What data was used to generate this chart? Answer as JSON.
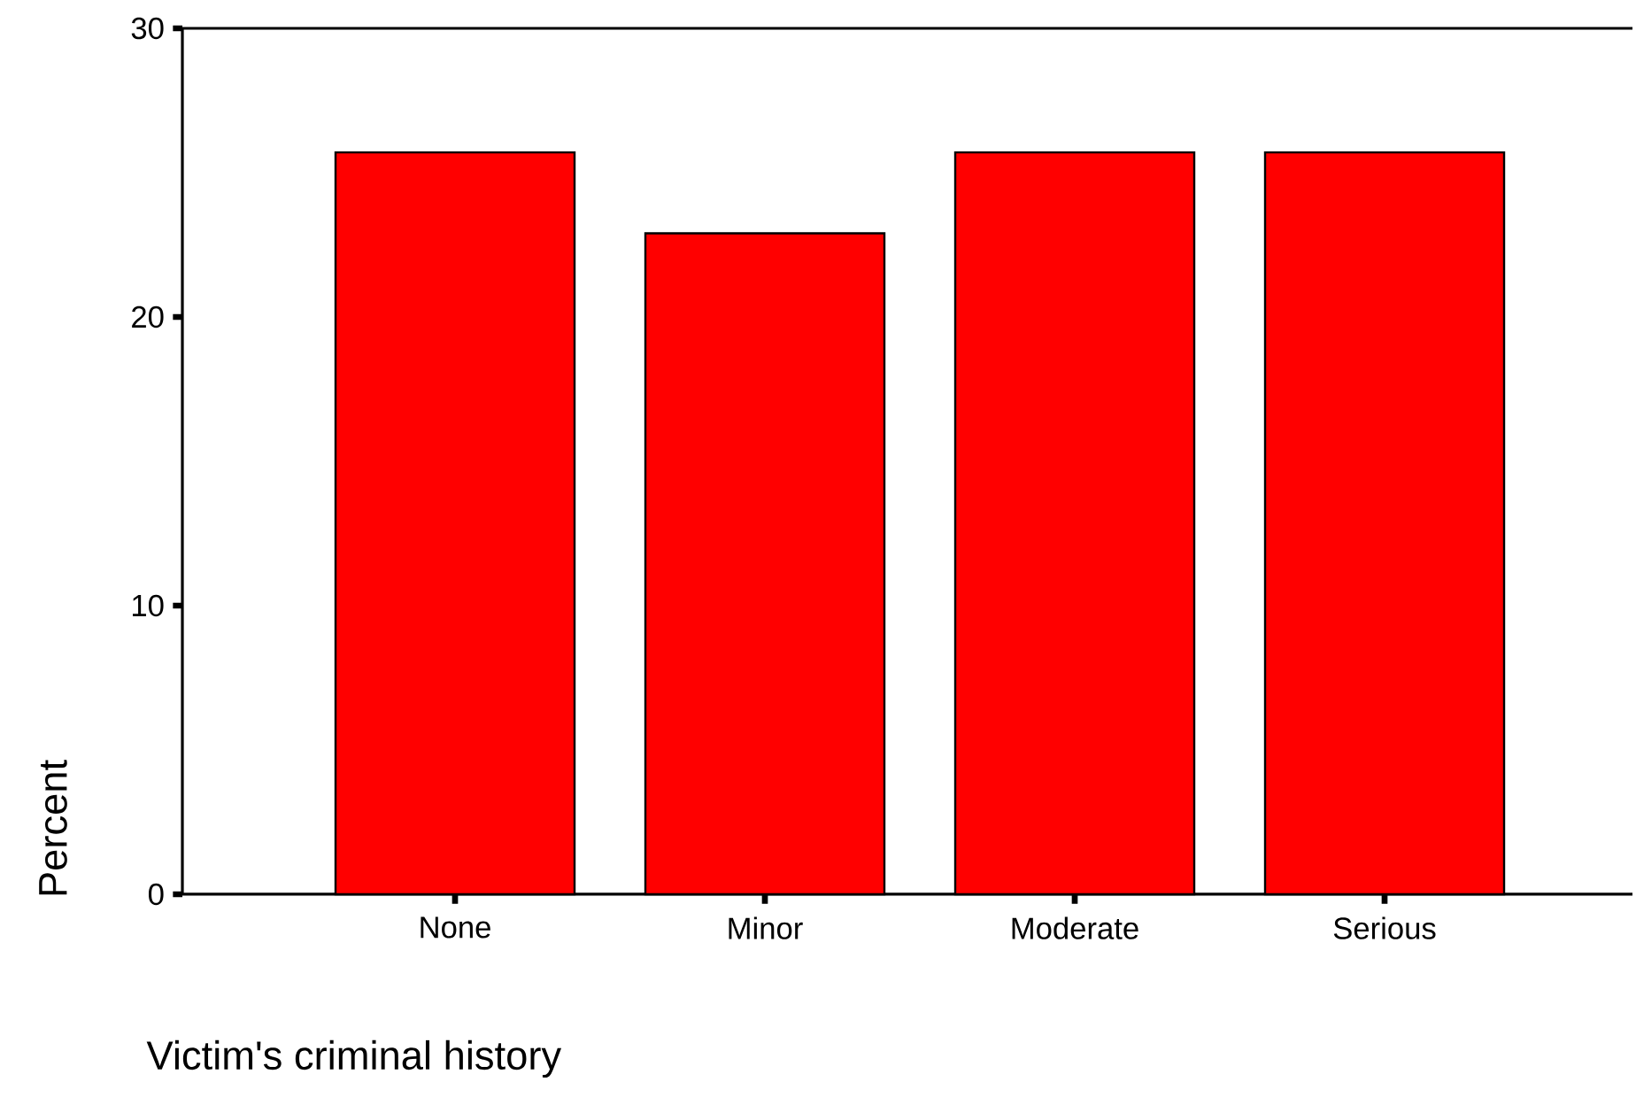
{
  "chart_data": {
    "type": "bar",
    "xlabel": "Victim's criminal history",
    "ylabel": "Percent",
    "categories": [
      "None",
      "Minor",
      "Moderate",
      "Serious"
    ],
    "values": [
      25.7,
      22.9,
      25.7,
      25.7
    ],
    "color": "#ff0000",
    "ylim": [
      0,
      30
    ],
    "yticks": [
      0,
      10,
      20,
      30
    ]
  }
}
